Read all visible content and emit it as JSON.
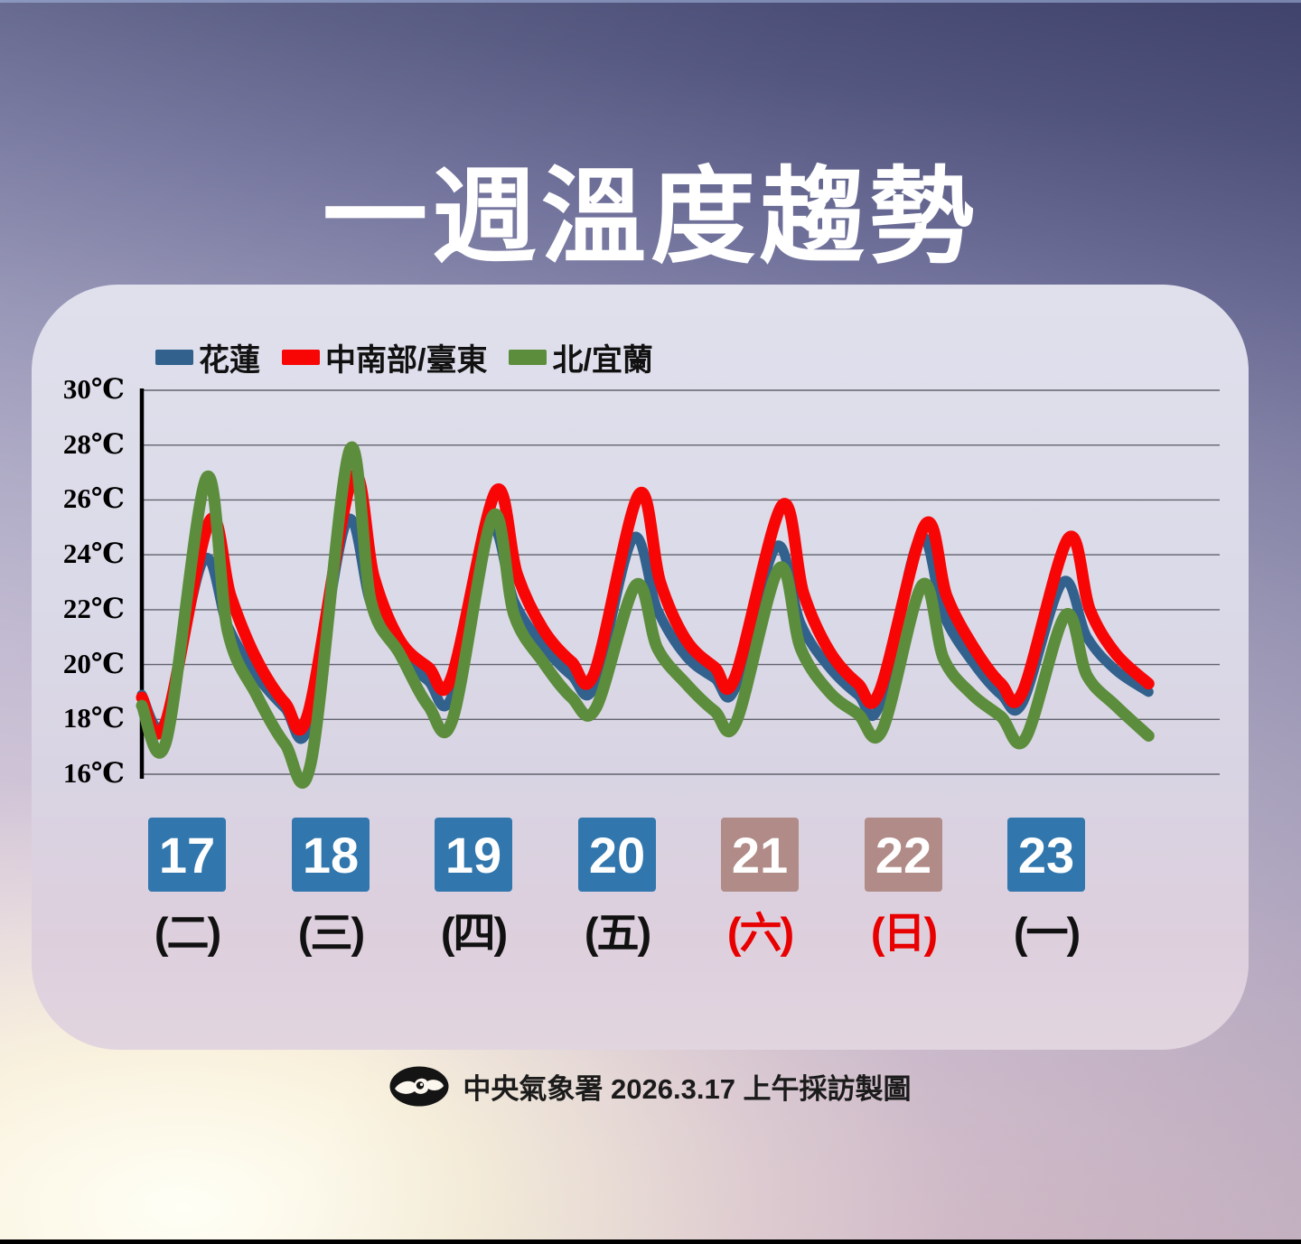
{
  "title": "一週溫度趨勢",
  "footer": {
    "logo_icon": "cwa-logo",
    "text": "中央氣象署 2026.3.17 上午採訪製圖"
  },
  "colors": {
    "weekday_chip": "#3177ae",
    "weekend_chip": "#b18b87",
    "weekday_text": "#111111",
    "weekend_text": "#e80000",
    "axis": "#000000",
    "gridline": "#62626e",
    "title_text": "#ffffff"
  },
  "chart_data": {
    "type": "line",
    "title": "一週溫度趨勢",
    "unit": "℃",
    "ylim": [
      16,
      30
    ],
    "grid": true,
    "legend_position": "top-left",
    "y_ticks": [
      {
        "label": "30℃",
        "value": 30
      },
      {
        "label": "28℃",
        "value": 28
      },
      {
        "label": "26℃",
        "value": 26
      },
      {
        "label": "24℃",
        "value": 24
      },
      {
        "label": "22℃",
        "value": 22
      },
      {
        "label": "20℃",
        "value": 20
      },
      {
        "label": "18℃",
        "value": 18
      },
      {
        "label": "16℃",
        "value": 16
      }
    ],
    "days": [
      {
        "date": "17",
        "weekday": "(二)",
        "weekend": false
      },
      {
        "date": "18",
        "weekday": "(三)",
        "weekend": false
      },
      {
        "date": "19",
        "weekday": "(四)",
        "weekend": false
      },
      {
        "date": "20",
        "weekday": "(五)",
        "weekend": false
      },
      {
        "date": "21",
        "weekday": "(六)",
        "weekend": true
      },
      {
        "date": "22",
        "weekday": "(日)",
        "weekend": true
      },
      {
        "date": "23",
        "weekday": "(一)",
        "weekend": false
      }
    ],
    "series": [
      {
        "name": "花蓮",
        "color": "#31618c",
        "width": 11,
        "points": [
          [
            0,
            18.9
          ],
          [
            0.16,
            17.9
          ],
          [
            0.43,
            23.8
          ],
          [
            0.6,
            21.4
          ],
          [
            0.8,
            19.6
          ],
          [
            1,
            18.4
          ],
          [
            1.16,
            17.7
          ],
          [
            1.43,
            25.2
          ],
          [
            1.6,
            22.2
          ],
          [
            1.8,
            20.4
          ],
          [
            2,
            19.4
          ],
          [
            2.16,
            18.8
          ],
          [
            2.43,
            24.9
          ],
          [
            2.6,
            22.3
          ],
          [
            2.8,
            20.7
          ],
          [
            3,
            19.6
          ],
          [
            3.16,
            19.2
          ],
          [
            3.43,
            24.6
          ],
          [
            3.6,
            22.0
          ],
          [
            3.8,
            20.3
          ],
          [
            4,
            19.5
          ],
          [
            4.14,
            19.1
          ],
          [
            4.43,
            24.3
          ],
          [
            4.6,
            21.5
          ],
          [
            4.8,
            19.9
          ],
          [
            5,
            18.9
          ],
          [
            5.15,
            18.5
          ],
          [
            5.43,
            24.6
          ],
          [
            5.6,
            21.8
          ],
          [
            5.8,
            20.1
          ],
          [
            6,
            18.9
          ],
          [
            6.15,
            18.6
          ],
          [
            6.43,
            23.0
          ],
          [
            6.6,
            21.0
          ],
          [
            6.8,
            19.8
          ],
          [
            7.03,
            19.0
          ]
        ]
      },
      {
        "name": "中南部/臺東",
        "color": "#f80606",
        "width": 13,
        "points": [
          [
            0,
            18.8
          ],
          [
            0.16,
            17.8
          ],
          [
            0.47,
            25.2
          ],
          [
            0.62,
            22.5
          ],
          [
            0.8,
            20.2
          ],
          [
            1,
            18.6
          ],
          [
            1.16,
            18.2
          ],
          [
            1.47,
            26.8
          ],
          [
            1.62,
            23.2
          ],
          [
            1.8,
            20.9
          ],
          [
            2,
            19.9
          ],
          [
            2.16,
            19.5
          ],
          [
            2.47,
            26.3
          ],
          [
            2.62,
            23.3
          ],
          [
            2.8,
            21.3
          ],
          [
            3,
            20.1
          ],
          [
            3.16,
            19.7
          ],
          [
            3.47,
            26.2
          ],
          [
            3.62,
            23.0
          ],
          [
            3.8,
            20.9
          ],
          [
            4,
            19.9
          ],
          [
            4.14,
            19.5
          ],
          [
            4.47,
            25.8
          ],
          [
            4.62,
            22.6
          ],
          [
            4.8,
            20.5
          ],
          [
            5,
            19.3
          ],
          [
            5.15,
            19.0
          ],
          [
            5.47,
            25.1
          ],
          [
            5.62,
            22.5
          ],
          [
            5.8,
            20.7
          ],
          [
            6,
            19.3
          ],
          [
            6.15,
            19.0
          ],
          [
            6.47,
            24.6
          ],
          [
            6.62,
            22.0
          ],
          [
            6.8,
            20.4
          ],
          [
            7.03,
            19.3
          ]
        ]
      },
      {
        "name": "北/宜蘭",
        "color": "#5c8d3c",
        "width": 13,
        "points": [
          [
            0,
            18.5
          ],
          [
            0.17,
            17.2
          ],
          [
            0.45,
            26.8
          ],
          [
            0.6,
            21.2
          ],
          [
            0.8,
            18.9
          ],
          [
            1,
            17.1
          ],
          [
            1.18,
            16.4
          ],
          [
            1.45,
            27.8
          ],
          [
            1.6,
            22.3
          ],
          [
            1.8,
            20.4
          ],
          [
            2,
            18.5
          ],
          [
            2.17,
            18.0
          ],
          [
            2.45,
            25.4
          ],
          [
            2.6,
            21.8
          ],
          [
            2.8,
            20.1
          ],
          [
            3,
            18.8
          ],
          [
            3.17,
            18.4
          ],
          [
            3.45,
            22.9
          ],
          [
            3.6,
            20.6
          ],
          [
            3.8,
            19.3
          ],
          [
            4,
            18.3
          ],
          [
            4.15,
            17.9
          ],
          [
            4.45,
            23.5
          ],
          [
            4.6,
            20.6
          ],
          [
            4.8,
            19.0
          ],
          [
            5,
            18.2
          ],
          [
            5.17,
            17.6
          ],
          [
            5.45,
            22.9
          ],
          [
            5.6,
            20.2
          ],
          [
            5.8,
            18.9
          ],
          [
            6,
            18.1
          ],
          [
            6.17,
            17.3
          ],
          [
            6.45,
            21.8
          ],
          [
            6.6,
            19.6
          ],
          [
            6.8,
            18.5
          ],
          [
            7.03,
            17.4
          ]
        ]
      }
    ]
  }
}
